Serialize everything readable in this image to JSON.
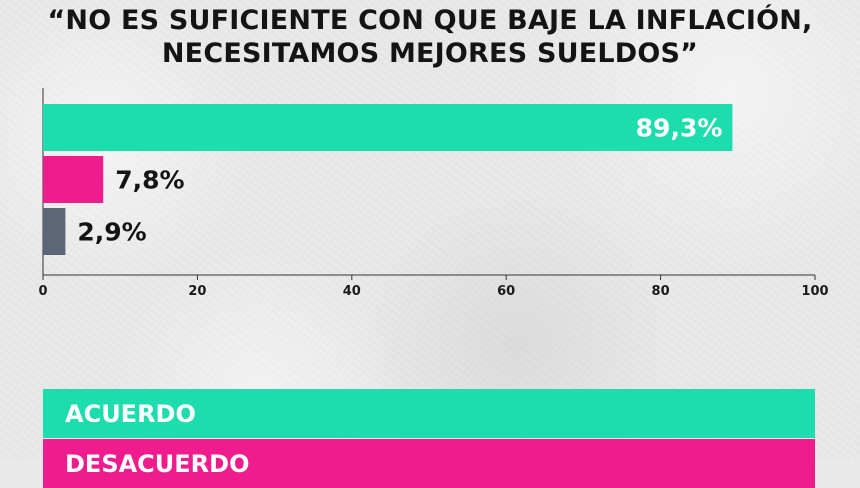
{
  "title": {
    "line1": "“NO ES SUFICIENTE CON QUE BAJE LA INFLACIÓN,",
    "line2": "NECESITAMOS MEJORES SUELDOS”"
  },
  "chart_data": {
    "type": "bar",
    "orientation": "horizontal",
    "xlim": [
      0,
      100
    ],
    "xticks": [
      0,
      20,
      40,
      60,
      80,
      100
    ],
    "values": [
      89.3,
      7.8,
      2.9
    ],
    "data_labels": [
      "89,3%",
      "7,8%",
      "2,9%"
    ],
    "colors": [
      "#1ddcae",
      "#ee1c8d",
      "#5d6677"
    ],
    "legend": [
      "ACUERDO",
      "DESACUERDO"
    ],
    "legend_colors": [
      "#1ddcae",
      "#ee1c8d"
    ],
    "grid": false
  }
}
